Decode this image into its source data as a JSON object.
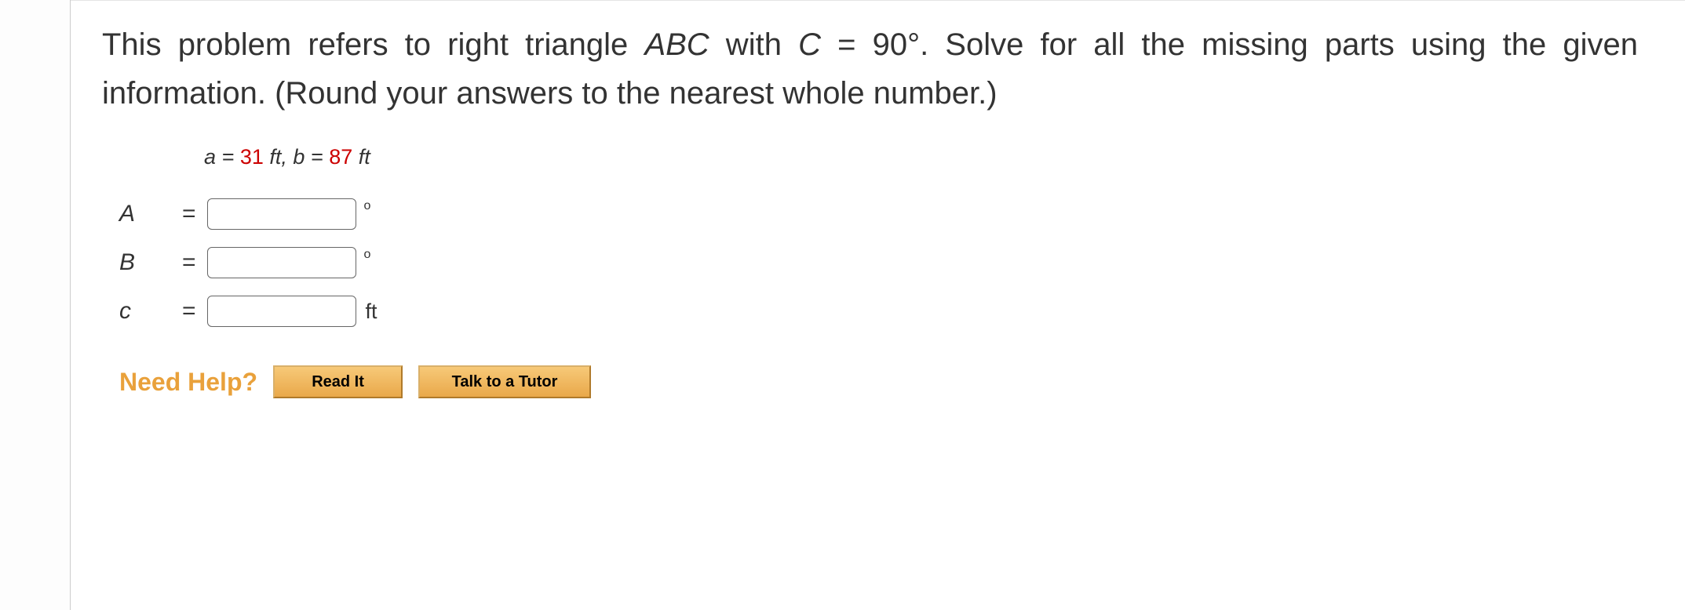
{
  "prompt": {
    "part1": "This problem refers to right triangle ",
    "tri": "ABC",
    "part2": " with ",
    "Cvar": "C",
    "part3": " = 90°. Solve for all the missing parts using the given information. (Round your answers to the nearest whole number.)"
  },
  "given": {
    "a_var": "a",
    "eq1": " = ",
    "a_val": "31",
    "a_unit": " ft, ",
    "b_var": "b",
    "eq2": " = ",
    "b_val": "87",
    "b_unit": " ft"
  },
  "rows": {
    "A": {
      "label": "A  ",
      "eq": "=",
      "unit": "°"
    },
    "B": {
      "label": "B  ",
      "eq": "=",
      "unit": "°"
    },
    "c": {
      "label": "c  ",
      "eq": "=",
      "unit": "ft"
    }
  },
  "help": {
    "label": "Need Help?",
    "read": "Read It",
    "tutor": "Talk to a Tutor"
  },
  "colors": {
    "value_red": "#cc0000",
    "help_orange": "#e9a13b",
    "btn_top": "#f7c978",
    "btn_bottom": "#e9a84a",
    "btn_border": "#b07a2a"
  }
}
